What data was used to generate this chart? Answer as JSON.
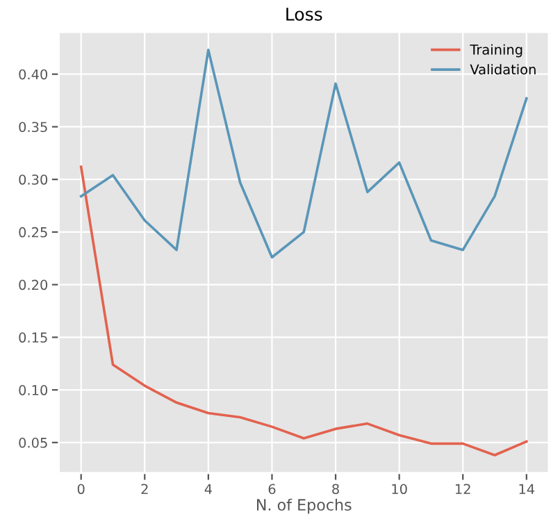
{
  "chart_data": {
    "type": "line",
    "title": "Loss",
    "xlabel": "N. of Epochs",
    "x": [
      0,
      1,
      2,
      3,
      4,
      5,
      6,
      7,
      8,
      9,
      10,
      11,
      12,
      13,
      14
    ],
    "series": [
      {
        "name": "Training",
        "color": "#e2624e",
        "values": [
          0.312,
          0.124,
          0.104,
          0.088,
          0.078,
          0.074,
          0.065,
          0.054,
          0.063,
          0.068,
          0.057,
          0.049,
          0.049,
          0.038,
          0.051
        ]
      },
      {
        "name": "Validation",
        "color": "#5a96b8",
        "values": [
          0.284,
          0.304,
          0.261,
          0.233,
          0.423,
          0.297,
          0.226,
          0.25,
          0.391,
          0.288,
          0.316,
          0.242,
          0.233,
          0.284,
          0.377
        ]
      }
    ],
    "xlim": [
      -0.7,
      14.7
    ],
    "ylim": [
      0.021,
      0.44
    ],
    "xticks": [
      0,
      2,
      4,
      6,
      8,
      10,
      12,
      14
    ],
    "yticks": [
      0.05,
      {
        "value": 0.1,
        "label": "0.10"
      },
      0.15,
      {
        "value": 0.2,
        "label": "0.20"
      },
      0.25,
      {
        "value": 0.3,
        "label": "0.30"
      },
      0.35,
      {
        "value": 0.4,
        "label": "0.40"
      }
    ],
    "grid": true,
    "legend": "top right",
    "marker": "none",
    "line_style": "solid"
  }
}
